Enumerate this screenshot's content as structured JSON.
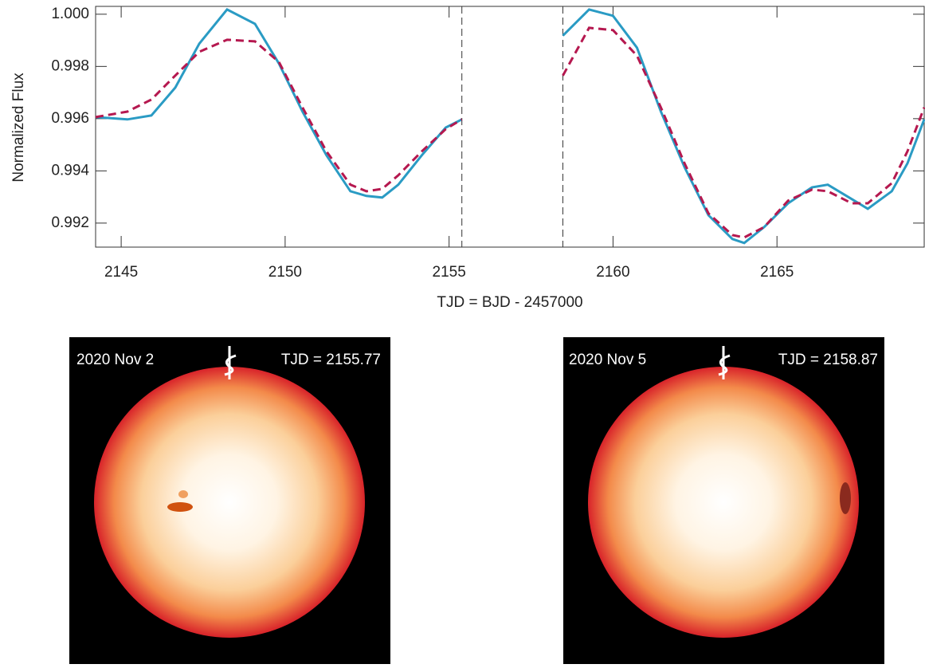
{
  "chart_data": {
    "type": "line",
    "xlabel": "TJD = BJD - 2457000",
    "ylabel": "Normalized Flux",
    "x": [
      2144.22,
      2145.19,
      2145.92,
      2146.65,
      2147.38,
      2148.23,
      2149.08,
      2149.81,
      2150.53,
      2151.26,
      2151.99,
      2152.48,
      2152.96,
      2153.45,
      2154.17,
      2154.9,
      2155.39,
      null,
      2158.47,
      2159.27,
      2160.0,
      2160.73,
      2161.46,
      2162.18,
      2162.91,
      2163.64,
      2164.0,
      2164.61,
      2165.34,
      2166.07,
      2166.55,
      2167.28,
      2167.77,
      2168.5,
      2168.98,
      2169.49
    ],
    "series": [
      {
        "color": "#2a9bc4",
        "dash": false,
        "values": [
          0.99606,
          0.99597,
          0.99612,
          0.99719,
          0.99887,
          1.00018,
          0.99963,
          0.99811,
          0.99627,
          0.9946,
          0.99322,
          0.99304,
          0.99298,
          0.99347,
          0.9946,
          0.99566,
          0.99597,
          null,
          0.99918,
          1.00018,
          0.99994,
          0.99872,
          0.99627,
          0.99414,
          0.9923,
          0.99139,
          0.99124,
          0.99185,
          0.99276,
          0.99337,
          0.99347,
          0.99292,
          0.99255,
          0.99322,
          0.99429,
          0.99597
        ]
      },
      {
        "color": "#b5184f",
        "dash": true,
        "values": [
          0.99606,
          0.99627,
          0.99673,
          0.99765,
          0.99856,
          0.99902,
          0.99896,
          0.99817,
          0.99643,
          0.99475,
          0.99347,
          0.99322,
          0.99331,
          0.99383,
          0.99475,
          0.9956,
          0.99597,
          null,
          0.99765,
          0.99948,
          0.99939,
          0.99841,
          0.99643,
          0.99429,
          0.99237,
          0.99154,
          0.99145,
          0.99185,
          0.99286,
          0.99328,
          0.99322,
          0.99276,
          0.99276,
          0.99353,
          0.99475,
          0.99643
        ]
      }
    ],
    "vlines": [
      2155.39,
      2158.47
    ],
    "xlim": [
      2144.22,
      2169.49
    ],
    "ylim": [
      0.99108,
      1.0003
    ],
    "xticks": [
      2145,
      2150,
      2155,
      2160,
      2165
    ],
    "yticks": [
      0.992,
      0.994,
      0.996,
      0.998,
      {
        "value": 1,
        "label": "1.000"
      }
    ]
  },
  "panels": [
    {
      "date": "2020 Nov 2",
      "tjd": "TJD = 2155.77"
    },
    {
      "date": "2020 Nov 5",
      "tjd": "TJD = 2158.87"
    }
  ]
}
